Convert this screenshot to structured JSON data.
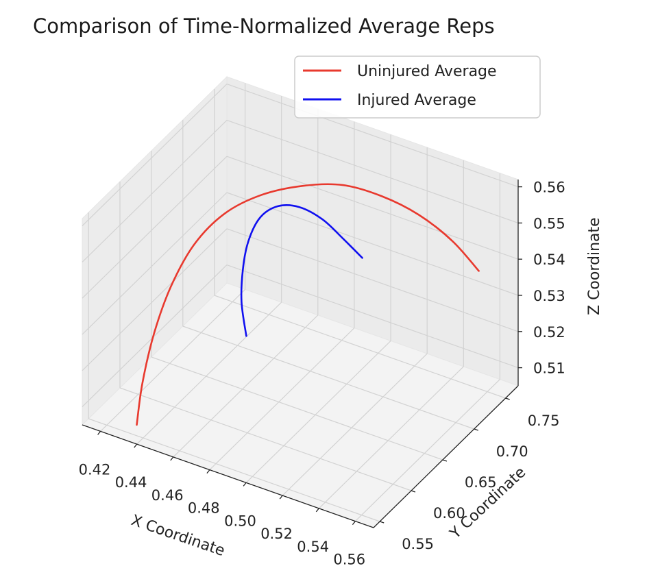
{
  "chart_data": {
    "type": "line",
    "projection": "3d",
    "title": "Comparison of Time-Normalized Average Reps",
    "xlabel": "X Coordinate",
    "ylabel": "Y Coordinate",
    "zlabel": "Z Coordinate",
    "xlim": [
      0.41,
      0.57
    ],
    "ylim": [
      0.54,
      0.77
    ],
    "zlim": [
      0.505,
      0.562
    ],
    "xticks": [
      "0.42",
      "0.44",
      "0.46",
      "0.48",
      "0.50",
      "0.52",
      "0.54",
      "0.56"
    ],
    "yticks": [
      "0.55",
      "0.60",
      "0.65",
      "0.70",
      "0.75"
    ],
    "zticks": [
      "0.51",
      "0.52",
      "0.53",
      "0.54",
      "0.55",
      "0.56"
    ],
    "grid": true,
    "legend_position": "top-right",
    "series": [
      {
        "name": "Uninjured Average",
        "color": "#e8392e",
        "points": [
          [
            0.432,
            0.563,
            0.505
          ],
          [
            0.432,
            0.572,
            0.515
          ],
          [
            0.434,
            0.585,
            0.527
          ],
          [
            0.438,
            0.6,
            0.538
          ],
          [
            0.445,
            0.617,
            0.548
          ],
          [
            0.455,
            0.636,
            0.555
          ],
          [
            0.468,
            0.656,
            0.559
          ],
          [
            0.484,
            0.676,
            0.561
          ],
          [
            0.5,
            0.694,
            0.561
          ],
          [
            0.516,
            0.71,
            0.558
          ],
          [
            0.531,
            0.725,
            0.553
          ],
          [
            0.545,
            0.738,
            0.546
          ],
          [
            0.556,
            0.748,
            0.538
          ]
        ]
      },
      {
        "name": "Injured Average",
        "color": "#1010f0",
        "points": [
          [
            0.468,
            0.633,
            0.524
          ],
          [
            0.464,
            0.637,
            0.532
          ],
          [
            0.463,
            0.642,
            0.54
          ],
          [
            0.464,
            0.648,
            0.547
          ],
          [
            0.468,
            0.655,
            0.553
          ],
          [
            0.475,
            0.663,
            0.556
          ],
          [
            0.484,
            0.671,
            0.556
          ],
          [
            0.494,
            0.679,
            0.553
          ],
          [
            0.503,
            0.686,
            0.548
          ],
          [
            0.511,
            0.693,
            0.543
          ]
        ]
      }
    ]
  }
}
